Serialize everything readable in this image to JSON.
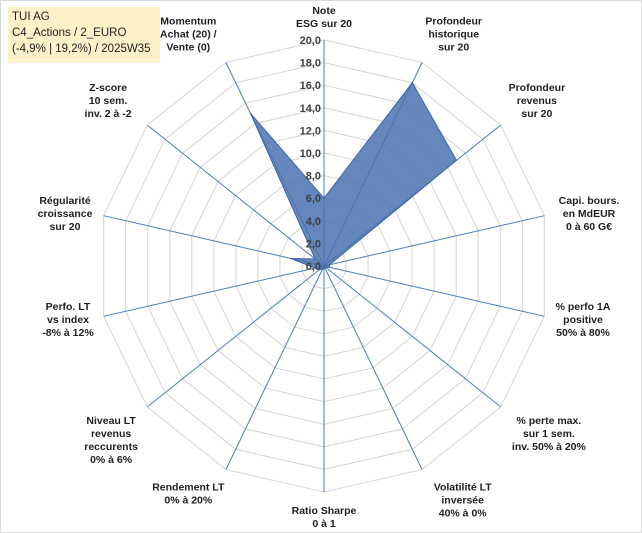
{
  "header": {
    "line1": "TUI AG",
    "line2": "C4_Actions / 2_EURO",
    "line3": "(-4,9% | 19,2%) / 2025W35"
  },
  "colors": {
    "fill": "#4a72b0",
    "stroke": "#3f66a8",
    "axis": "#4a7ebb",
    "grid": "#d4d4d4",
    "title_bg": "#fdf2c7"
  },
  "chart_data": {
    "type": "radar",
    "rlim": [
      0,
      20
    ],
    "ticks": [
      "0,0",
      "2,0",
      "4,0",
      "6,0",
      "8,0",
      "10,0",
      "12,0",
      "14,0",
      "16,0",
      "18,0",
      "20,0"
    ],
    "grid": true,
    "legend": "none",
    "axes": [
      [
        "Note",
        "ESG sur 20"
      ],
      [
        "Profondeur",
        "historique",
        "sur 20"
      ],
      [
        "Profondeur",
        "revenus",
        "sur 20"
      ],
      [
        "Capi. bours.",
        "en MdEUR",
        "0 à 60 G€"
      ],
      [
        "% perfo 1A",
        "positive",
        "50% à 80%"
      ],
      [
        "% perte max.",
        "sur 1 sem.",
        "inv. 50% à 20%"
      ],
      [
        "Volatilité LT",
        "inversée",
        "40% à 0%"
      ],
      [
        "Ratio Sharpe",
        "0 à 1"
      ],
      [
        "Rendement LT",
        "0% à 20%"
      ],
      [
        "Niveau LT",
        "revenus",
        "reccurents",
        "0% à 6%"
      ],
      [
        "Perfo. LT",
        "vs index",
        "-8% à 12%"
      ],
      [
        "Régularité",
        "croissance",
        "sur 20"
      ],
      [
        "Z-score",
        "10 sem.",
        "inv. 2 à -2"
      ],
      [
        "Momentum",
        "Achat (20) /",
        "Vente (0)"
      ]
    ],
    "values": [
      6.0,
      18.0,
      15.0,
      0.5,
      0.5,
      0.2,
      0.1,
      0.2,
      0.3,
      0.5,
      0.8,
      3.0,
      1.0,
      15.0
    ]
  }
}
